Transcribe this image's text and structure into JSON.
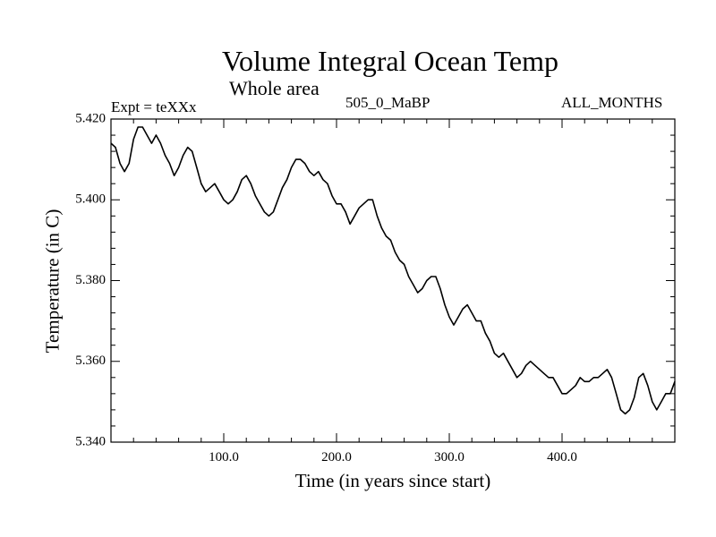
{
  "chart_data": {
    "type": "line",
    "title": "Volume Integral Ocean Temp",
    "subtitle": "Whole area",
    "left_label": "Expt = teXXx",
    "center_label": "505_0_MaBP",
    "right_label": "ALL_MONTHS",
    "xlabel": "Time (in years since start)",
    "ylabel": "Temperature (in C)",
    "xlim": [
      0,
      500
    ],
    "ylim": [
      5.34,
      5.42
    ],
    "xticks": [
      100,
      200,
      300,
      400
    ],
    "xtick_labels": [
      "100.0",
      "200.0",
      "300.0",
      "400.0"
    ],
    "yticks": [
      5.34,
      5.36,
      5.38,
      5.4,
      5.42
    ],
    "ytick_labels": [
      "5.340",
      "5.360",
      "5.380",
      "5.400",
      "5.420"
    ],
    "series": [
      {
        "name": "Volume Integral Ocean Temp",
        "color": "#000000",
        "x": [
          0,
          4,
          8,
          12,
          16,
          20,
          24,
          28,
          32,
          36,
          40,
          44,
          48,
          52,
          56,
          60,
          64,
          68,
          72,
          76,
          80,
          84,
          88,
          92,
          96,
          100,
          104,
          108,
          112,
          116,
          120,
          124,
          128,
          132,
          136,
          140,
          144,
          148,
          152,
          156,
          160,
          164,
          168,
          172,
          176,
          180,
          184,
          188,
          192,
          196,
          200,
          204,
          208,
          212,
          216,
          220,
          224,
          228,
          232,
          236,
          240,
          244,
          248,
          252,
          256,
          260,
          264,
          268,
          272,
          276,
          280,
          284,
          288,
          292,
          296,
          300,
          304,
          308,
          312,
          316,
          320,
          324,
          328,
          332,
          336,
          340,
          344,
          348,
          352,
          356,
          360,
          364,
          368,
          372,
          376,
          380,
          384,
          388,
          392,
          396,
          400,
          404,
          408,
          412,
          416,
          420,
          424,
          428,
          432,
          436,
          440,
          444,
          448,
          452,
          456,
          460,
          464,
          468,
          472,
          476,
          480,
          484,
          488,
          492,
          496,
          500
        ],
        "values": [
          5.414,
          5.413,
          5.409,
          5.407,
          5.409,
          5.415,
          5.418,
          5.418,
          5.416,
          5.414,
          5.416,
          5.414,
          5.411,
          5.409,
          5.406,
          5.408,
          5.411,
          5.413,
          5.412,
          5.408,
          5.404,
          5.402,
          5.403,
          5.404,
          5.402,
          5.4,
          5.399,
          5.4,
          5.402,
          5.405,
          5.406,
          5.404,
          5.401,
          5.399,
          5.397,
          5.396,
          5.397,
          5.4,
          5.403,
          5.405,
          5.408,
          5.41,
          5.41,
          5.409,
          5.407,
          5.406,
          5.407,
          5.405,
          5.404,
          5.401,
          5.399,
          5.399,
          5.397,
          5.394,
          5.396,
          5.398,
          5.399,
          5.4,
          5.4,
          5.396,
          5.393,
          5.391,
          5.39,
          5.387,
          5.385,
          5.384,
          5.381,
          5.379,
          5.377,
          5.378,
          5.38,
          5.381,
          5.381,
          5.378,
          5.374,
          5.371,
          5.369,
          5.371,
          5.373,
          5.374,
          5.372,
          5.37,
          5.37,
          5.367,
          5.365,
          5.362,
          5.361,
          5.362,
          5.36,
          5.358,
          5.356,
          5.357,
          5.359,
          5.36,
          5.359,
          5.358,
          5.357,
          5.356,
          5.356,
          5.354,
          5.352,
          5.352,
          5.353,
          5.354,
          5.356,
          5.355,
          5.355,
          5.356,
          5.356,
          5.357,
          5.358,
          5.356,
          5.352,
          5.348,
          5.347,
          5.348,
          5.351,
          5.356,
          5.357,
          5.354,
          5.35,
          5.348,
          5.35,
          5.352,
          5.352,
          5.355
        ]
      }
    ]
  }
}
